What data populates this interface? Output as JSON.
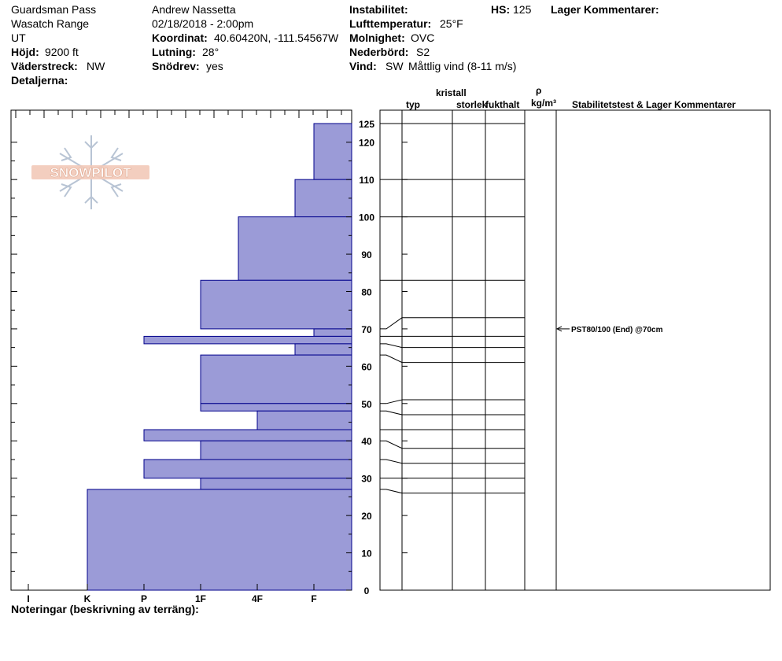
{
  "header": {
    "location": "Guardsman Pass",
    "range": "Wasatch Range",
    "state": "UT",
    "elevation_label": "Höjd:",
    "elevation_value": "9200 ft",
    "aspect_label": "Väderstreck:",
    "aspect_value": "NW",
    "details_label": "Detaljerna:",
    "observer": "Andrew Nassetta",
    "datetime": "02/18/2018 - 2:00pm",
    "coord_label": "Koordinat:",
    "coord_value": "40.60420N, -111.54567W",
    "slope_label": "Lutning:",
    "slope_value": "28°",
    "drift_label": "Snödrev:",
    "drift_value": "yes",
    "instability_label": "Instabilitet:",
    "airtemp_label": "Lufttemperatur:",
    "airtemp_value": "25°F",
    "sky_label": "Molnighet:",
    "sky_value": "OVC",
    "precip_label": "Nederbörd:",
    "precip_value": "S2",
    "wind_label": "Vind:",
    "wind_dir": "SW",
    "wind_value": "Måttlig vind (8-11 m/s)",
    "hs_label": "HS:",
    "hs_value": "125",
    "layer_comments_label": "Lager Kommentarer:"
  },
  "columns": {
    "crystal": "kristall",
    "type": "typ",
    "size": "storlek",
    "moisture": "fukthalt",
    "rho": "ρ",
    "density_unit": "kg/m³",
    "stability": "Stabilitetstest & Lager Kommentarer"
  },
  "footer": {
    "notes_label": "Noteringar (beskrivning av terräng):"
  },
  "logo_text": "SNOWPILOT",
  "colors": {
    "bar_fill": "#9b9bd7",
    "bar_stroke": "#00008b",
    "line": "#000000"
  },
  "chart_data": {
    "type": "bar",
    "orientation": "horizontal",
    "hardness_scale": [
      "I",
      "K",
      "P",
      "1F",
      "4F",
      "F"
    ],
    "hardness_axis_direction": "decreasing-left-to-right",
    "y_range": [
      0,
      125
    ],
    "y_ticks": [
      0,
      10,
      20,
      30,
      40,
      50,
      60,
      70,
      80,
      90,
      100,
      110,
      120,
      125
    ],
    "layers": [
      {
        "bottom": 110,
        "top": 125,
        "hardness": "F"
      },
      {
        "bottom": 100,
        "top": 110,
        "hardness": "F+"
      },
      {
        "bottom": 83,
        "top": 100,
        "hardness": "4F+"
      },
      {
        "bottom": 70,
        "top": 83,
        "hardness": "1F"
      },
      {
        "bottom": 68,
        "top": 70,
        "hardness": "F"
      },
      {
        "bottom": 66,
        "top": 68,
        "hardness": "P"
      },
      {
        "bottom": 63,
        "top": 66,
        "hardness": "F+"
      },
      {
        "bottom": 50,
        "top": 63,
        "hardness": "1F"
      },
      {
        "bottom": 48,
        "top": 50,
        "hardness": "1F"
      },
      {
        "bottom": 43,
        "top": 48,
        "hardness": "4F"
      },
      {
        "bottom": 40,
        "top": 43,
        "hardness": "P"
      },
      {
        "bottom": 35,
        "top": 40,
        "hardness": "1F"
      },
      {
        "bottom": 30,
        "top": 35,
        "hardness": "P"
      },
      {
        "bottom": 27,
        "top": 30,
        "hardness": "1F"
      },
      {
        "bottom": 0,
        "top": 27,
        "hardness": "K"
      }
    ],
    "layer_lines": [
      125,
      110,
      100,
      83,
      73,
      68,
      65,
      61,
      51,
      47,
      43,
      38,
      34,
      30,
      26
    ],
    "boundary_connectors": [
      {
        "depth": 125,
        "col_depth": 125
      },
      {
        "depth": 110,
        "col_depth": 110
      },
      {
        "depth": 100,
        "col_depth": 100
      },
      {
        "depth": 83,
        "col_depth": 83
      },
      {
        "depth": 70,
        "col_depth": 73
      },
      {
        "depth": 68,
        "col_depth": 68
      },
      {
        "depth": 66,
        "col_depth": 65
      },
      {
        "depth": 63,
        "col_depth": 61
      },
      {
        "depth": 50,
        "col_depth": 51
      },
      {
        "depth": 48,
        "col_depth": 47
      },
      {
        "depth": 43,
        "col_depth": 43
      },
      {
        "depth": 40,
        "col_depth": 38
      },
      {
        "depth": 35,
        "col_depth": 34
      },
      {
        "depth": 30,
        "col_depth": 30
      },
      {
        "depth": 27,
        "col_depth": 26
      }
    ],
    "stability_tests": [
      {
        "depth": 70,
        "label": "PST80/100 (End) @70cm"
      }
    ]
  }
}
